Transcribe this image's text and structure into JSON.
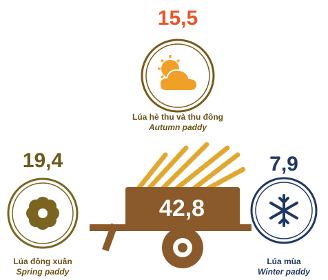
{
  "total": {
    "value": "42,8"
  },
  "items": [
    {
      "value": "15,5",
      "label_vi": "Lúa hè thu và thu đông",
      "label_en": "Autumn paddy"
    },
    {
      "value": "19,4",
      "label_vi": "Lúa đông xuân",
      "label_en": "Spring paddy"
    },
    {
      "value": "7,9",
      "label_vi": "Lúa mùa",
      "label_en": "Winter paddy"
    }
  ]
}
